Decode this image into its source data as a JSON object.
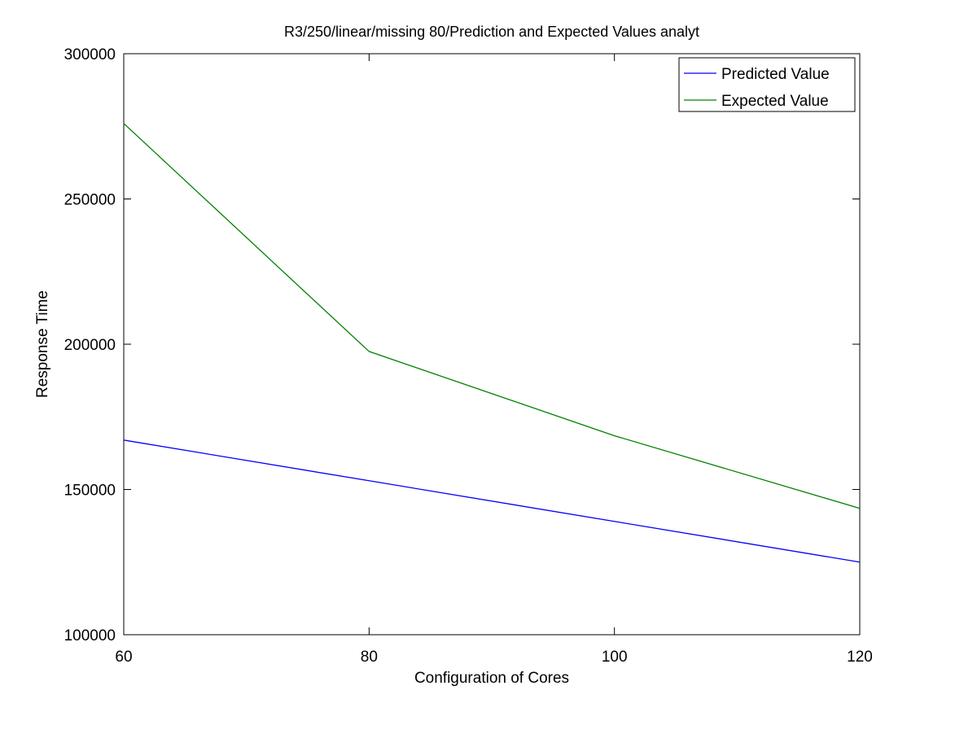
{
  "chart_data": {
    "type": "line",
    "title": "R3/250/linear/missing 80/Prediction and Expected Values analyt",
    "xlabel": "Configuration of Cores",
    "ylabel": "Response Time",
    "x": [
      60,
      80,
      100,
      120
    ],
    "xlim": [
      60,
      120
    ],
    "ylim": [
      100000,
      300000
    ],
    "xticks": [
      60,
      80,
      100,
      120
    ],
    "yticks": [
      100000,
      150000,
      200000,
      250000,
      300000
    ],
    "xtick_labels": [
      "60",
      "80",
      "100",
      "120"
    ],
    "ytick_labels": [
      "100000",
      "150000",
      "200000",
      "250000",
      "300000"
    ],
    "grid": false,
    "legend_position": "top-right",
    "series": [
      {
        "name": "Predicted Value",
        "color": "#0000ff",
        "values": [
          167000,
          153000,
          139000,
          125000
        ]
      },
      {
        "name": "Expected Value",
        "color": "#008000",
        "values": [
          276000,
          197500,
          168500,
          143500
        ]
      }
    ]
  }
}
